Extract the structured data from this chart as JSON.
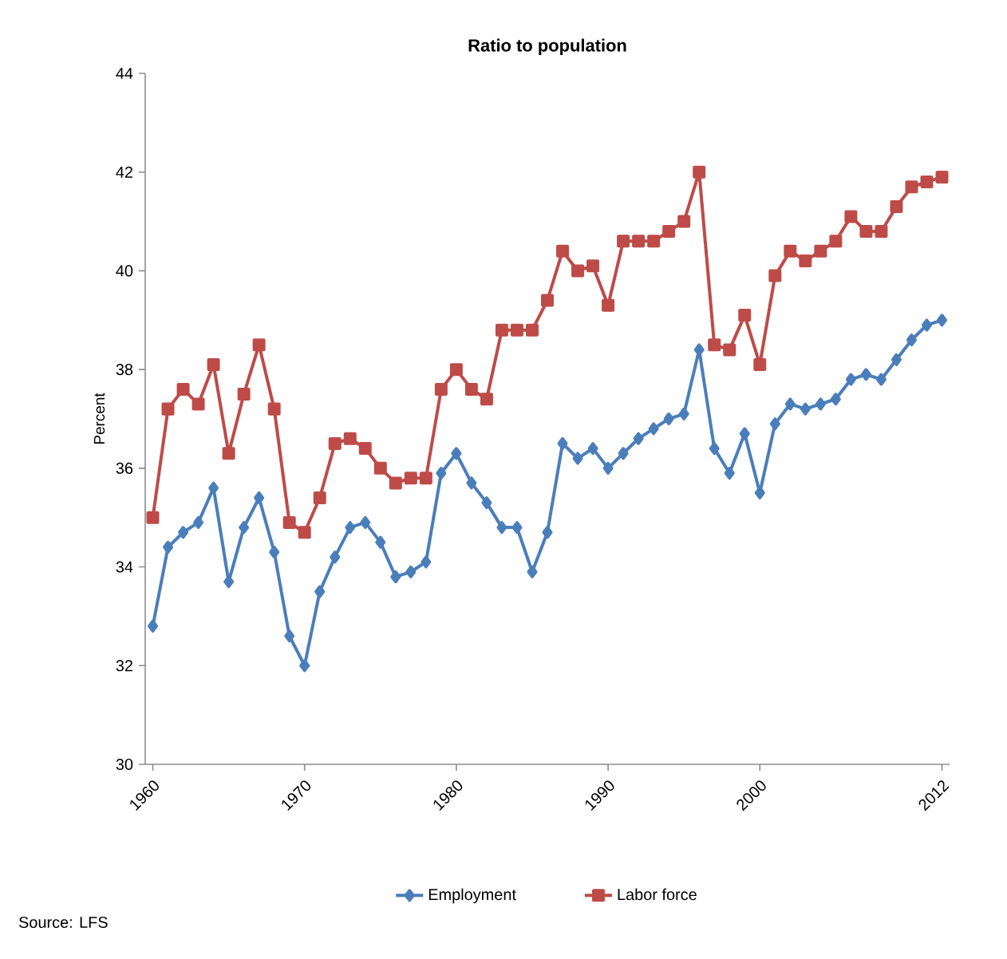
{
  "chart_data": {
    "type": "line",
    "title": "Ratio to population",
    "ylabel": "Percent",
    "x": [
      1960,
      1961,
      1962,
      1963,
      1964,
      1965,
      1966,
      1967,
      1968,
      1969,
      1970,
      1971,
      1972,
      1973,
      1974,
      1975,
      1976,
      1977,
      1978,
      1979,
      1980,
      1981,
      1982,
      1983,
      1984,
      1985,
      1986,
      1987,
      1988,
      1989,
      1990,
      1991,
      1992,
      1993,
      1994,
      1995,
      1996,
      1997,
      1998,
      1999,
      2000,
      2001,
      2002,
      2003,
      2004,
      2005,
      2006,
      2007,
      2008,
      2009,
      2010,
      2011,
      2012
    ],
    "xlim": [
      1959.5,
      2012.5
    ],
    "xticks": [
      1960,
      1970,
      1980,
      1990,
      2000,
      2012
    ],
    "ylim": [
      30,
      44
    ],
    "yticks": [
      30,
      32,
      34,
      36,
      38,
      40,
      42,
      44
    ],
    "grid": false,
    "legend": "bottom",
    "annotations": [
      "Source: LFS"
    ],
    "series": [
      {
        "name": "Employment",
        "color": "#4a7ebb",
        "marker": "diamond",
        "values": [
          32.8,
          34.4,
          34.7,
          34.9,
          35.6,
          33.7,
          34.8,
          35.4,
          34.3,
          32.6,
          32.0,
          33.5,
          34.2,
          34.8,
          34.9,
          34.5,
          33.8,
          33.9,
          34.1,
          35.9,
          36.3,
          35.7,
          35.3,
          34.8,
          34.8,
          33.9,
          34.7,
          36.5,
          36.2,
          36.4,
          36.0,
          36.3,
          36.6,
          36.8,
          37.0,
          37.1,
          38.4,
          36.4,
          35.9,
          36.7,
          35.5,
          36.9,
          37.3,
          37.2,
          37.3,
          37.4,
          37.8,
          37.9,
          37.8,
          38.2,
          38.6,
          38.9,
          39.0
        ]
      },
      {
        "name": "Labor force",
        "color": "#be4b48",
        "marker": "square",
        "values": [
          35.0,
          37.2,
          37.6,
          37.3,
          38.1,
          36.3,
          37.5,
          38.5,
          37.2,
          34.9,
          34.7,
          35.4,
          36.5,
          36.6,
          36.4,
          36.0,
          35.7,
          35.8,
          35.8,
          37.6,
          38.0,
          37.6,
          37.4,
          38.8,
          38.8,
          38.8,
          39.4,
          40.4,
          40.0,
          40.1,
          39.3,
          40.6,
          40.6,
          40.6,
          40.8,
          41.0,
          42.0,
          38.5,
          38.4,
          39.1,
          38.1,
          39.9,
          40.4,
          40.2,
          40.4,
          40.6,
          41.1,
          40.8,
          40.8,
          41.3,
          41.7,
          41.8,
          41.9
        ]
      }
    ]
  }
}
